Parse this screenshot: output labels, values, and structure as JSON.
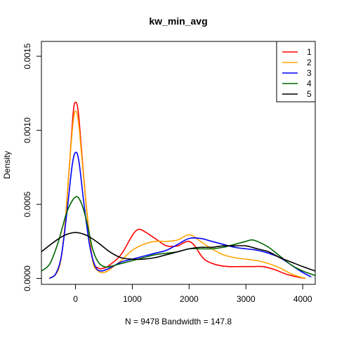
{
  "chart_data": {
    "type": "line",
    "title": "kw_min_avg",
    "xlabel": "N = 9478   Bandwidth = 147.8",
    "ylabel": "Density",
    "xlim": [
      -600,
      4220
    ],
    "ylim": [
      -4e-05,
      0.0016
    ],
    "x_ticks": [
      0,
      1000,
      2000,
      3000,
      4000
    ],
    "x_tick_labels": [
      "0",
      "1000",
      "2000",
      "3000",
      "4000"
    ],
    "y_ticks": [
      0.0,
      0.0005,
      0.001,
      0.0015
    ],
    "y_tick_labels": [
      "0.0000",
      "0.0005",
      "0.0010",
      "0.0015"
    ],
    "grid": false,
    "legend_position": "top-right",
    "series": [
      {
        "name": "1",
        "color": "#ff0000",
        "points": [
          [
            -460,
            0
          ],
          [
            -300,
            6e-05
          ],
          [
            -200,
            0.0003
          ],
          [
            -100,
            0.0008
          ],
          [
            -40,
            0.00112
          ],
          [
            0,
            0.00119
          ],
          [
            50,
            0.00112
          ],
          [
            120,
            0.0008
          ],
          [
            200,
            0.00045
          ],
          [
            300,
            0.00013
          ],
          [
            400,
            7e-05
          ],
          [
            500,
            7e-05
          ],
          [
            600,
            9e-05
          ],
          [
            800,
            0.00016
          ],
          [
            1000,
            0.00029
          ],
          [
            1100,
            0.00033
          ],
          [
            1200,
            0.00032
          ],
          [
            1400,
            0.00027
          ],
          [
            1600,
            0.00022
          ],
          [
            1800,
            0.00022
          ],
          [
            1900,
            0.00024
          ],
          [
            2000,
            0.00025
          ],
          [
            2100,
            0.00022
          ],
          [
            2200,
            0.00016
          ],
          [
            2300,
            0.00012
          ],
          [
            2500,
            9e-05
          ],
          [
            2700,
            8e-05
          ],
          [
            2900,
            8e-05
          ],
          [
            3100,
            8e-05
          ],
          [
            3300,
            8e-05
          ],
          [
            3500,
            6e-05
          ],
          [
            3700,
            3e-05
          ],
          [
            3900,
            1e-05
          ],
          [
            4050,
            0
          ]
        ]
      },
      {
        "name": "2",
        "color": "#ffa500",
        "points": [
          [
            -460,
            0
          ],
          [
            -300,
            6e-05
          ],
          [
            -200,
            0.0003
          ],
          [
            -100,
            0.0008
          ],
          [
            -40,
            0.00106
          ],
          [
            0,
            0.00113
          ],
          [
            50,
            0.00106
          ],
          [
            120,
            0.00078
          ],
          [
            200,
            0.00045
          ],
          [
            300,
            0.00012
          ],
          [
            400,
            5e-05
          ],
          [
            500,
            4e-05
          ],
          [
            600,
            6e-05
          ],
          [
            800,
            0.00012
          ],
          [
            1000,
            0.00019
          ],
          [
            1200,
            0.00023
          ],
          [
            1400,
            0.00025
          ],
          [
            1600,
            0.00025
          ],
          [
            1800,
            0.00026
          ],
          [
            1950,
            0.00029
          ],
          [
            2050,
            0.00029
          ],
          [
            2200,
            0.00025
          ],
          [
            2400,
            0.0002
          ],
          [
            2600,
            0.00016
          ],
          [
            2800,
            0.00014
          ],
          [
            3000,
            0.00013
          ],
          [
            3200,
            0.00012
          ],
          [
            3400,
            0.0001
          ],
          [
            3600,
            7e-05
          ],
          [
            3800,
            3e-05
          ],
          [
            3950,
            1e-05
          ],
          [
            4050,
            0
          ]
        ]
      },
      {
        "name": "3",
        "color": "#0000ff",
        "points": [
          [
            -460,
            0
          ],
          [
            -350,
            3e-05
          ],
          [
            -250,
            0.00015
          ],
          [
            -150,
            0.00045
          ],
          [
            -60,
            0.00076
          ],
          [
            0,
            0.00085
          ],
          [
            60,
            0.00079
          ],
          [
            150,
            0.0005
          ],
          [
            250,
            0.00022
          ],
          [
            350,
            8e-05
          ],
          [
            450,
            5e-05
          ],
          [
            600,
            7e-05
          ],
          [
            800,
            0.00011
          ],
          [
            1000,
            0.00013
          ],
          [
            1200,
            0.00015
          ],
          [
            1400,
            0.00017
          ],
          [
            1600,
            0.00019
          ],
          [
            1800,
            0.00023
          ],
          [
            2000,
            0.00027
          ],
          [
            2200,
            0.00027
          ],
          [
            2400,
            0.00025
          ],
          [
            2600,
            0.00023
          ],
          [
            2800,
            0.00021
          ],
          [
            3000,
            0.0002
          ],
          [
            3200,
            0.00019
          ],
          [
            3400,
            0.00017
          ],
          [
            3600,
            0.00014
          ],
          [
            3800,
            9e-05
          ],
          [
            4000,
            4e-05
          ],
          [
            4150,
            1e-05
          ]
        ]
      },
      {
        "name": "4",
        "color": "#006400",
        "points": [
          [
            -600,
            5e-05
          ],
          [
            -450,
            0.0001
          ],
          [
            -300,
            0.00025
          ],
          [
            -150,
            0.00045
          ],
          [
            0,
            0.00055
          ],
          [
            100,
            0.00051
          ],
          [
            200,
            0.00038
          ],
          [
            300,
            0.0002
          ],
          [
            400,
            0.00011
          ],
          [
            500,
            8e-05
          ],
          [
            600,
            8e-05
          ],
          [
            800,
            0.0001
          ],
          [
            1000,
            0.00012
          ],
          [
            1200,
            0.00014
          ],
          [
            1400,
            0.00016
          ],
          [
            1600,
            0.00017
          ],
          [
            1800,
            0.00018
          ],
          [
            2000,
            0.0002
          ],
          [
            2200,
            0.0002
          ],
          [
            2400,
            0.0002
          ],
          [
            2600,
            0.00021
          ],
          [
            2800,
            0.00023
          ],
          [
            3000,
            0.00025
          ],
          [
            3100,
            0.00026
          ],
          [
            3200,
            0.00025
          ],
          [
            3400,
            0.00021
          ],
          [
            3600,
            0.00015
          ],
          [
            3800,
            9e-05
          ],
          [
            4000,
            5e-05
          ],
          [
            4220,
            2e-05
          ]
        ]
      },
      {
        "name": "5",
        "color": "#000000",
        "points": [
          [
            -600,
            0.00018
          ],
          [
            -400,
            0.00024
          ],
          [
            -200,
            0.00029
          ],
          [
            0,
            0.00031
          ],
          [
            200,
            0.00029
          ],
          [
            400,
            0.00024
          ],
          [
            600,
            0.00018
          ],
          [
            800,
            0.00014
          ],
          [
            1000,
            0.00013
          ],
          [
            1200,
            0.00013
          ],
          [
            1400,
            0.00014
          ],
          [
            1600,
            0.00016
          ],
          [
            1800,
            0.00018
          ],
          [
            2000,
            0.0002
          ],
          [
            2200,
            0.00021
          ],
          [
            2400,
            0.00021
          ],
          [
            2600,
            0.00022
          ],
          [
            2800,
            0.00022
          ],
          [
            3000,
            0.00022
          ],
          [
            3200,
            0.0002
          ],
          [
            3400,
            0.00018
          ],
          [
            3600,
            0.00014
          ],
          [
            3800,
            0.00011
          ],
          [
            4000,
            8e-05
          ],
          [
            4220,
            5e-05
          ]
        ]
      }
    ]
  }
}
